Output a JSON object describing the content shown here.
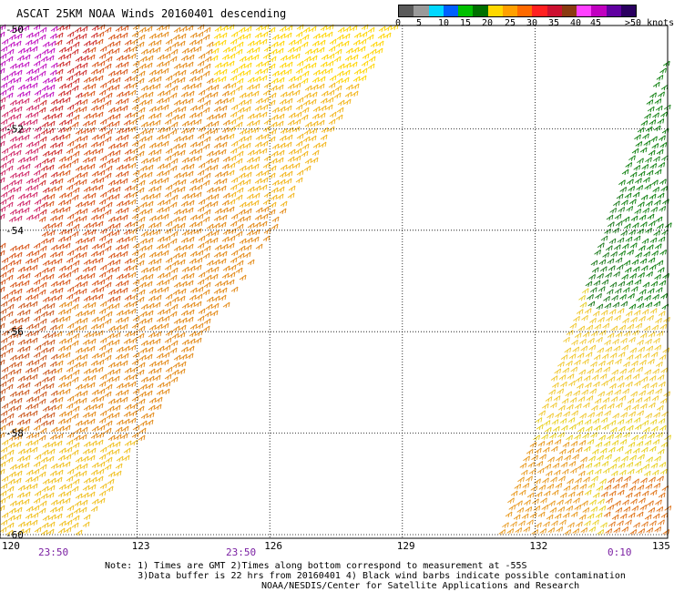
{
  "title": "ASCAT 25KM NOAA Winds 20160401 descending",
  "colorbar": {
    "colors": [
      "#5a5a5a",
      "#9a9a9a",
      "#00d8ff",
      "#0060ff",
      "#00c000",
      "#007000",
      "#ffd800",
      "#ffa000",
      "#ff6a00",
      "#ff2020",
      "#cc1030",
      "#8a3a10",
      "#ff40ff",
      "#c000c0",
      "#6000a0",
      "#2a0060"
    ],
    "labels": [
      "0",
      "5",
      "10",
      "15",
      "20",
      "25",
      "30",
      "35",
      "40",
      "45",
      ">50 knots"
    ]
  },
  "map": {
    "lon_ticks": [
      "120",
      "123",
      "126",
      "129",
      "132",
      "135"
    ],
    "lat_ticks": [
      "-50",
      "-52",
      "-54",
      "-56",
      "-58",
      "-60"
    ],
    "times": [
      "23:50",
      "23:50",
      "0:10"
    ]
  },
  "note_lines": [
    "Note: 1) Times are GMT 2)Times along bottom correspond to measurement at -55S",
    "      3)Data buffer is 22 hrs from 20160401 4) Black wind barbs indicate possible contamination"
  ],
  "credit": "NOAA/NESDIS/Center for Satellite Applications and Research"
}
